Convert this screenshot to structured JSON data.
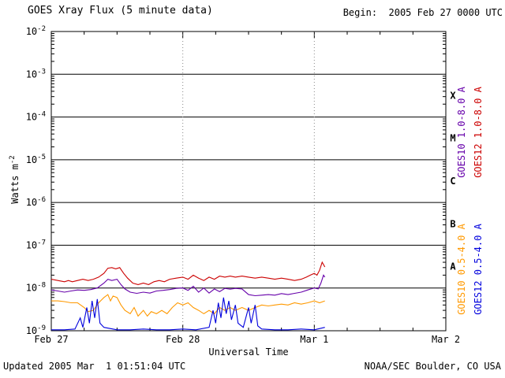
{
  "header": {
    "title": "GOES Xray Flux (5 minute data)",
    "begin": "Begin:  2005 Feb 27 0000 UTC"
  },
  "footer": {
    "updated": "Updated 2005 Mar  1 01:51:04 UTC",
    "credit": "NOAA/SEC Boulder, CO USA"
  },
  "axes": {
    "ylabel_base": "Watts m",
    "ylabel_exp": "-2",
    "xlabel": "Universal Time"
  },
  "chart_data": {
    "type": "line",
    "title": "GOES Xray Flux (5 minute data)",
    "subtitle": "Begin:  2005 Feb 27 0000 UTC",
    "xlabel": "Universal Time",
    "ylabel": "Watts m-2",
    "x_unit": "days since 2005 Feb 27 0000 UTC",
    "xlim": [
      0,
      3
    ],
    "ylog_lim": [
      -9,
      -2
    ],
    "grid": "solid horizontal decade lines, dotted vertical day lines",
    "legend_position": "right, rotated 90deg",
    "xticks": [
      {
        "t": 0,
        "label": "Feb 27"
      },
      {
        "t": 1,
        "label": "Feb 28"
      },
      {
        "t": 2,
        "label": "Mar 1"
      },
      {
        "t": 3,
        "label": "Mar 2"
      }
    ],
    "flare_classes": [
      {
        "label": "X",
        "log_center": -3.5
      },
      {
        "label": "M",
        "log_center": -4.5
      },
      {
        "label": "C",
        "log_center": -5.5
      },
      {
        "label": "B",
        "log_center": -6.5
      },
      {
        "label": "A",
        "log_center": -7.5
      }
    ],
    "series": [
      {
        "name": "GOES10 1.0-8.0 A",
        "color": "#6600aa",
        "points": [
          [
            0.0,
            9e-09
          ],
          [
            0.05,
            8.5e-09
          ],
          [
            0.1,
            8e-09
          ],
          [
            0.15,
            8.5e-09
          ],
          [
            0.2,
            9e-09
          ],
          [
            0.25,
            8.8e-09
          ],
          [
            0.3,
            9.2e-09
          ],
          [
            0.35,
            1e-08
          ],
          [
            0.4,
            1.3e-08
          ],
          [
            0.43,
            1.6e-08
          ],
          [
            0.46,
            1.5e-08
          ],
          [
            0.5,
            1.6e-08
          ],
          [
            0.53,
            1.2e-08
          ],
          [
            0.56,
            9.5e-09
          ],
          [
            0.6,
            8e-09
          ],
          [
            0.65,
            7.5e-09
          ],
          [
            0.7,
            8e-09
          ],
          [
            0.75,
            7.6e-09
          ],
          [
            0.8,
            8.5e-09
          ],
          [
            0.85,
            8.8e-09
          ],
          [
            0.9,
            9.2e-09
          ],
          [
            0.95,
            9.8e-09
          ],
          [
            1.0,
            1e-08
          ],
          [
            1.04,
            8.8e-09
          ],
          [
            1.08,
            1.1e-08
          ],
          [
            1.12,
            8e-09
          ],
          [
            1.16,
            1e-08
          ],
          [
            1.2,
            7.6e-09
          ],
          [
            1.24,
            9.5e-09
          ],
          [
            1.28,
            8.2e-09
          ],
          [
            1.32,
            9.8e-09
          ],
          [
            1.36,
            9.4e-09
          ],
          [
            1.4,
            9.8e-09
          ],
          [
            1.45,
            9.5e-09
          ],
          [
            1.5,
            7e-09
          ],
          [
            1.55,
            6.6e-09
          ],
          [
            1.6,
            6.8e-09
          ],
          [
            1.65,
            7e-09
          ],
          [
            1.7,
            6.8e-09
          ],
          [
            1.75,
            7.4e-09
          ],
          [
            1.8,
            7e-09
          ],
          [
            1.85,
            7.5e-09
          ],
          [
            1.9,
            8e-09
          ],
          [
            1.95,
            9e-09
          ],
          [
            2.0,
            1e-08
          ],
          [
            2.03,
            9.5e-09
          ],
          [
            2.05,
            1.3e-08
          ],
          [
            2.07,
            2e-08
          ],
          [
            2.08,
            1.8e-08
          ]
        ]
      },
      {
        "name": "GOES12 1.0-8.0 A",
        "color": "#cc0000",
        "points": [
          [
            0.0,
            1.6e-08
          ],
          [
            0.05,
            1.5e-08
          ],
          [
            0.1,
            1.4e-08
          ],
          [
            0.13,
            1.5e-08
          ],
          [
            0.16,
            1.4e-08
          ],
          [
            0.2,
            1.5e-08
          ],
          [
            0.24,
            1.6e-08
          ],
          [
            0.28,
            1.5e-08
          ],
          [
            0.32,
            1.6e-08
          ],
          [
            0.36,
            1.8e-08
          ],
          [
            0.4,
            2.2e-08
          ],
          [
            0.43,
            2.9e-08
          ],
          [
            0.46,
            3e-08
          ],
          [
            0.49,
            2.8e-08
          ],
          [
            0.52,
            3e-08
          ],
          [
            0.55,
            2.2e-08
          ],
          [
            0.58,
            1.7e-08
          ],
          [
            0.62,
            1.3e-08
          ],
          [
            0.66,
            1.2e-08
          ],
          [
            0.7,
            1.3e-08
          ],
          [
            0.74,
            1.2e-08
          ],
          [
            0.78,
            1.4e-08
          ],
          [
            0.82,
            1.5e-08
          ],
          [
            0.86,
            1.4e-08
          ],
          [
            0.9,
            1.6e-08
          ],
          [
            0.95,
            1.7e-08
          ],
          [
            1.0,
            1.8e-08
          ],
          [
            1.04,
            1.6e-08
          ],
          [
            1.08,
            2e-08
          ],
          [
            1.12,
            1.7e-08
          ],
          [
            1.16,
            1.5e-08
          ],
          [
            1.2,
            1.8e-08
          ],
          [
            1.24,
            1.6e-08
          ],
          [
            1.28,
            1.9e-08
          ],
          [
            1.32,
            1.8e-08
          ],
          [
            1.36,
            1.9e-08
          ],
          [
            1.4,
            1.8e-08
          ],
          [
            1.45,
            1.9e-08
          ],
          [
            1.5,
            1.8e-08
          ],
          [
            1.55,
            1.7e-08
          ],
          [
            1.6,
            1.8e-08
          ],
          [
            1.65,
            1.7e-08
          ],
          [
            1.7,
            1.6e-08
          ],
          [
            1.75,
            1.7e-08
          ],
          [
            1.8,
            1.6e-08
          ],
          [
            1.85,
            1.5e-08
          ],
          [
            1.9,
            1.6e-08
          ],
          [
            1.94,
            1.8e-08
          ],
          [
            1.97,
            2e-08
          ],
          [
            2.0,
            2.2e-08
          ],
          [
            2.02,
            2e-08
          ],
          [
            2.04,
            2.6e-08
          ],
          [
            2.06,
            4e-08
          ],
          [
            2.08,
            3.1e-08
          ]
        ]
      },
      {
        "name": "GOES10 0.5-4.0 A",
        "color": "#ff9900",
        "points": [
          [
            0.0,
            5e-09
          ],
          [
            0.05,
            5e-09
          ],
          [
            0.1,
            4.8e-09
          ],
          [
            0.15,
            4.5e-09
          ],
          [
            0.2,
            4.5e-09
          ],
          [
            0.25,
            3.5e-09
          ],
          [
            0.28,
            2.8e-09
          ],
          [
            0.32,
            3e-09
          ],
          [
            0.36,
            4.5e-09
          ],
          [
            0.4,
            6e-09
          ],
          [
            0.43,
            7e-09
          ],
          [
            0.45,
            5e-09
          ],
          [
            0.47,
            6.5e-09
          ],
          [
            0.5,
            6e-09
          ],
          [
            0.53,
            4e-09
          ],
          [
            0.56,
            3e-09
          ],
          [
            0.6,
            2.5e-09
          ],
          [
            0.63,
            3.5e-09
          ],
          [
            0.66,
            2.2e-09
          ],
          [
            0.7,
            3e-09
          ],
          [
            0.73,
            2.2e-09
          ],
          [
            0.76,
            2.8e-09
          ],
          [
            0.8,
            2.5e-09
          ],
          [
            0.84,
            3e-09
          ],
          [
            0.88,
            2.5e-09
          ],
          [
            0.92,
            3.5e-09
          ],
          [
            0.96,
            4.5e-09
          ],
          [
            1.0,
            4e-09
          ],
          [
            1.04,
            4.5e-09
          ],
          [
            1.08,
            3.5e-09
          ],
          [
            1.12,
            3e-09
          ],
          [
            1.16,
            2.5e-09
          ],
          [
            1.2,
            3e-09
          ],
          [
            1.24,
            2.5e-09
          ],
          [
            1.28,
            3.5e-09
          ],
          [
            1.32,
            3e-09
          ],
          [
            1.36,
            3.5e-09
          ],
          [
            1.4,
            3e-09
          ],
          [
            1.45,
            3.5e-09
          ],
          [
            1.5,
            3e-09
          ],
          [
            1.55,
            3.5e-09
          ],
          [
            1.6,
            4e-09
          ],
          [
            1.65,
            3.8e-09
          ],
          [
            1.7,
            4e-09
          ],
          [
            1.75,
            4.2e-09
          ],
          [
            1.8,
            4e-09
          ],
          [
            1.85,
            4.5e-09
          ],
          [
            1.9,
            4.2e-09
          ],
          [
            1.95,
            4.5e-09
          ],
          [
            2.0,
            5e-09
          ],
          [
            2.04,
            4.5e-09
          ],
          [
            2.08,
            5e-09
          ]
        ]
      },
      {
        "name": "GOES12 0.5-4.0 A",
        "color": "#0000dd",
        "points": [
          [
            0.0,
            1.05e-09
          ],
          [
            0.1,
            1.05e-09
          ],
          [
            0.18,
            1.1e-09
          ],
          [
            0.22,
            2e-09
          ],
          [
            0.24,
            1.2e-09
          ],
          [
            0.27,
            3.5e-09
          ],
          [
            0.29,
            1.5e-09
          ],
          [
            0.31,
            5e-09
          ],
          [
            0.33,
            2e-09
          ],
          [
            0.35,
            5.5e-09
          ],
          [
            0.37,
            1.5e-09
          ],
          [
            0.4,
            1.2e-09
          ],
          [
            0.5,
            1.05e-09
          ],
          [
            0.6,
            1.05e-09
          ],
          [
            0.7,
            1.1e-09
          ],
          [
            0.8,
            1.05e-09
          ],
          [
            0.9,
            1.05e-09
          ],
          [
            1.0,
            1.1e-09
          ],
          [
            1.1,
            1.05e-09
          ],
          [
            1.2,
            1.2e-09
          ],
          [
            1.23,
            3e-09
          ],
          [
            1.25,
            1.5e-09
          ],
          [
            1.27,
            4.5e-09
          ],
          [
            1.29,
            2e-09
          ],
          [
            1.31,
            6e-09
          ],
          [
            1.33,
            2.5e-09
          ],
          [
            1.35,
            5e-09
          ],
          [
            1.37,
            1.8e-09
          ],
          [
            1.4,
            4e-09
          ],
          [
            1.42,
            1.5e-09
          ],
          [
            1.46,
            1.2e-09
          ],
          [
            1.5,
            3.5e-09
          ],
          [
            1.52,
            1.5e-09
          ],
          [
            1.55,
            4e-09
          ],
          [
            1.57,
            1.3e-09
          ],
          [
            1.6,
            1.1e-09
          ],
          [
            1.7,
            1.05e-09
          ],
          [
            1.8,
            1.05e-09
          ],
          [
            1.9,
            1.1e-09
          ],
          [
            2.0,
            1.05e-09
          ],
          [
            2.08,
            1.2e-09
          ]
        ]
      }
    ]
  }
}
